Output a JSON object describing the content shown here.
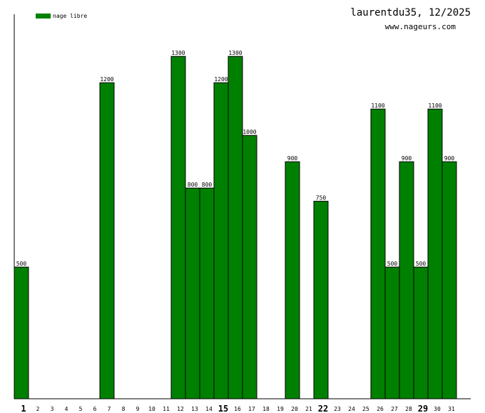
{
  "chart_data": {
    "type": "bar",
    "title": "laurentdu35, 12/2025",
    "subtitle": "www.nageurs.com",
    "xlabel": "",
    "ylabel": "",
    "ylim": [
      0,
      1460
    ],
    "grid": false,
    "legend_position": "top-left",
    "bar_color": "#008000",
    "categories": [
      "1",
      "2",
      "3",
      "4",
      "5",
      "6",
      "7",
      "8",
      "9",
      "10",
      "11",
      "12",
      "13",
      "14",
      "15",
      "16",
      "17",
      "18",
      "19",
      "20",
      "21",
      "22",
      "23",
      "24",
      "25",
      "26",
      "27",
      "28",
      "29",
      "30",
      "31"
    ],
    "emphasized_categories": [
      "1",
      "15",
      "22",
      "29"
    ],
    "series": [
      {
        "name": "nage libre",
        "values": [
          500,
          0,
          0,
          0,
          0,
          0,
          1200,
          0,
          0,
          0,
          0,
          1300,
          800,
          800,
          1200,
          1300,
          1000,
          0,
          0,
          900,
          0,
          750,
          0,
          0,
          0,
          1100,
          500,
          900,
          500,
          1100,
          900
        ]
      }
    ]
  }
}
